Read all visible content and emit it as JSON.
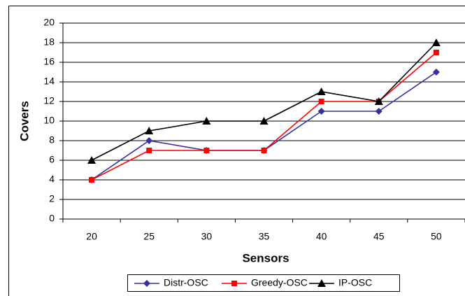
{
  "chart_data": {
    "type": "line",
    "x_label": "Sensors",
    "y_label": "Covers",
    "categories": [
      "20",
      "25",
      "30",
      "35",
      "40",
      "45",
      "50"
    ],
    "series": [
      {
        "name": "Distr-OSC",
        "color": "#333399",
        "marker": "diamond",
        "values": [
          4,
          8,
          7,
          7,
          11,
          11,
          15
        ]
      },
      {
        "name": "Greedy-OSC",
        "color": "#ff0000",
        "marker": "square",
        "values": [
          4,
          7,
          7,
          7,
          12,
          12,
          17
        ]
      },
      {
        "name": "IP-OSC",
        "color": "#000000",
        "marker": "triangle",
        "values": [
          6,
          9,
          10,
          10,
          13,
          12,
          18
        ]
      }
    ],
    "ylim": [
      0,
      20
    ],
    "yticks": [
      0,
      2,
      4,
      6,
      8,
      10,
      12,
      14,
      16,
      18,
      20
    ],
    "grid": true,
    "legend": "bottom"
  }
}
